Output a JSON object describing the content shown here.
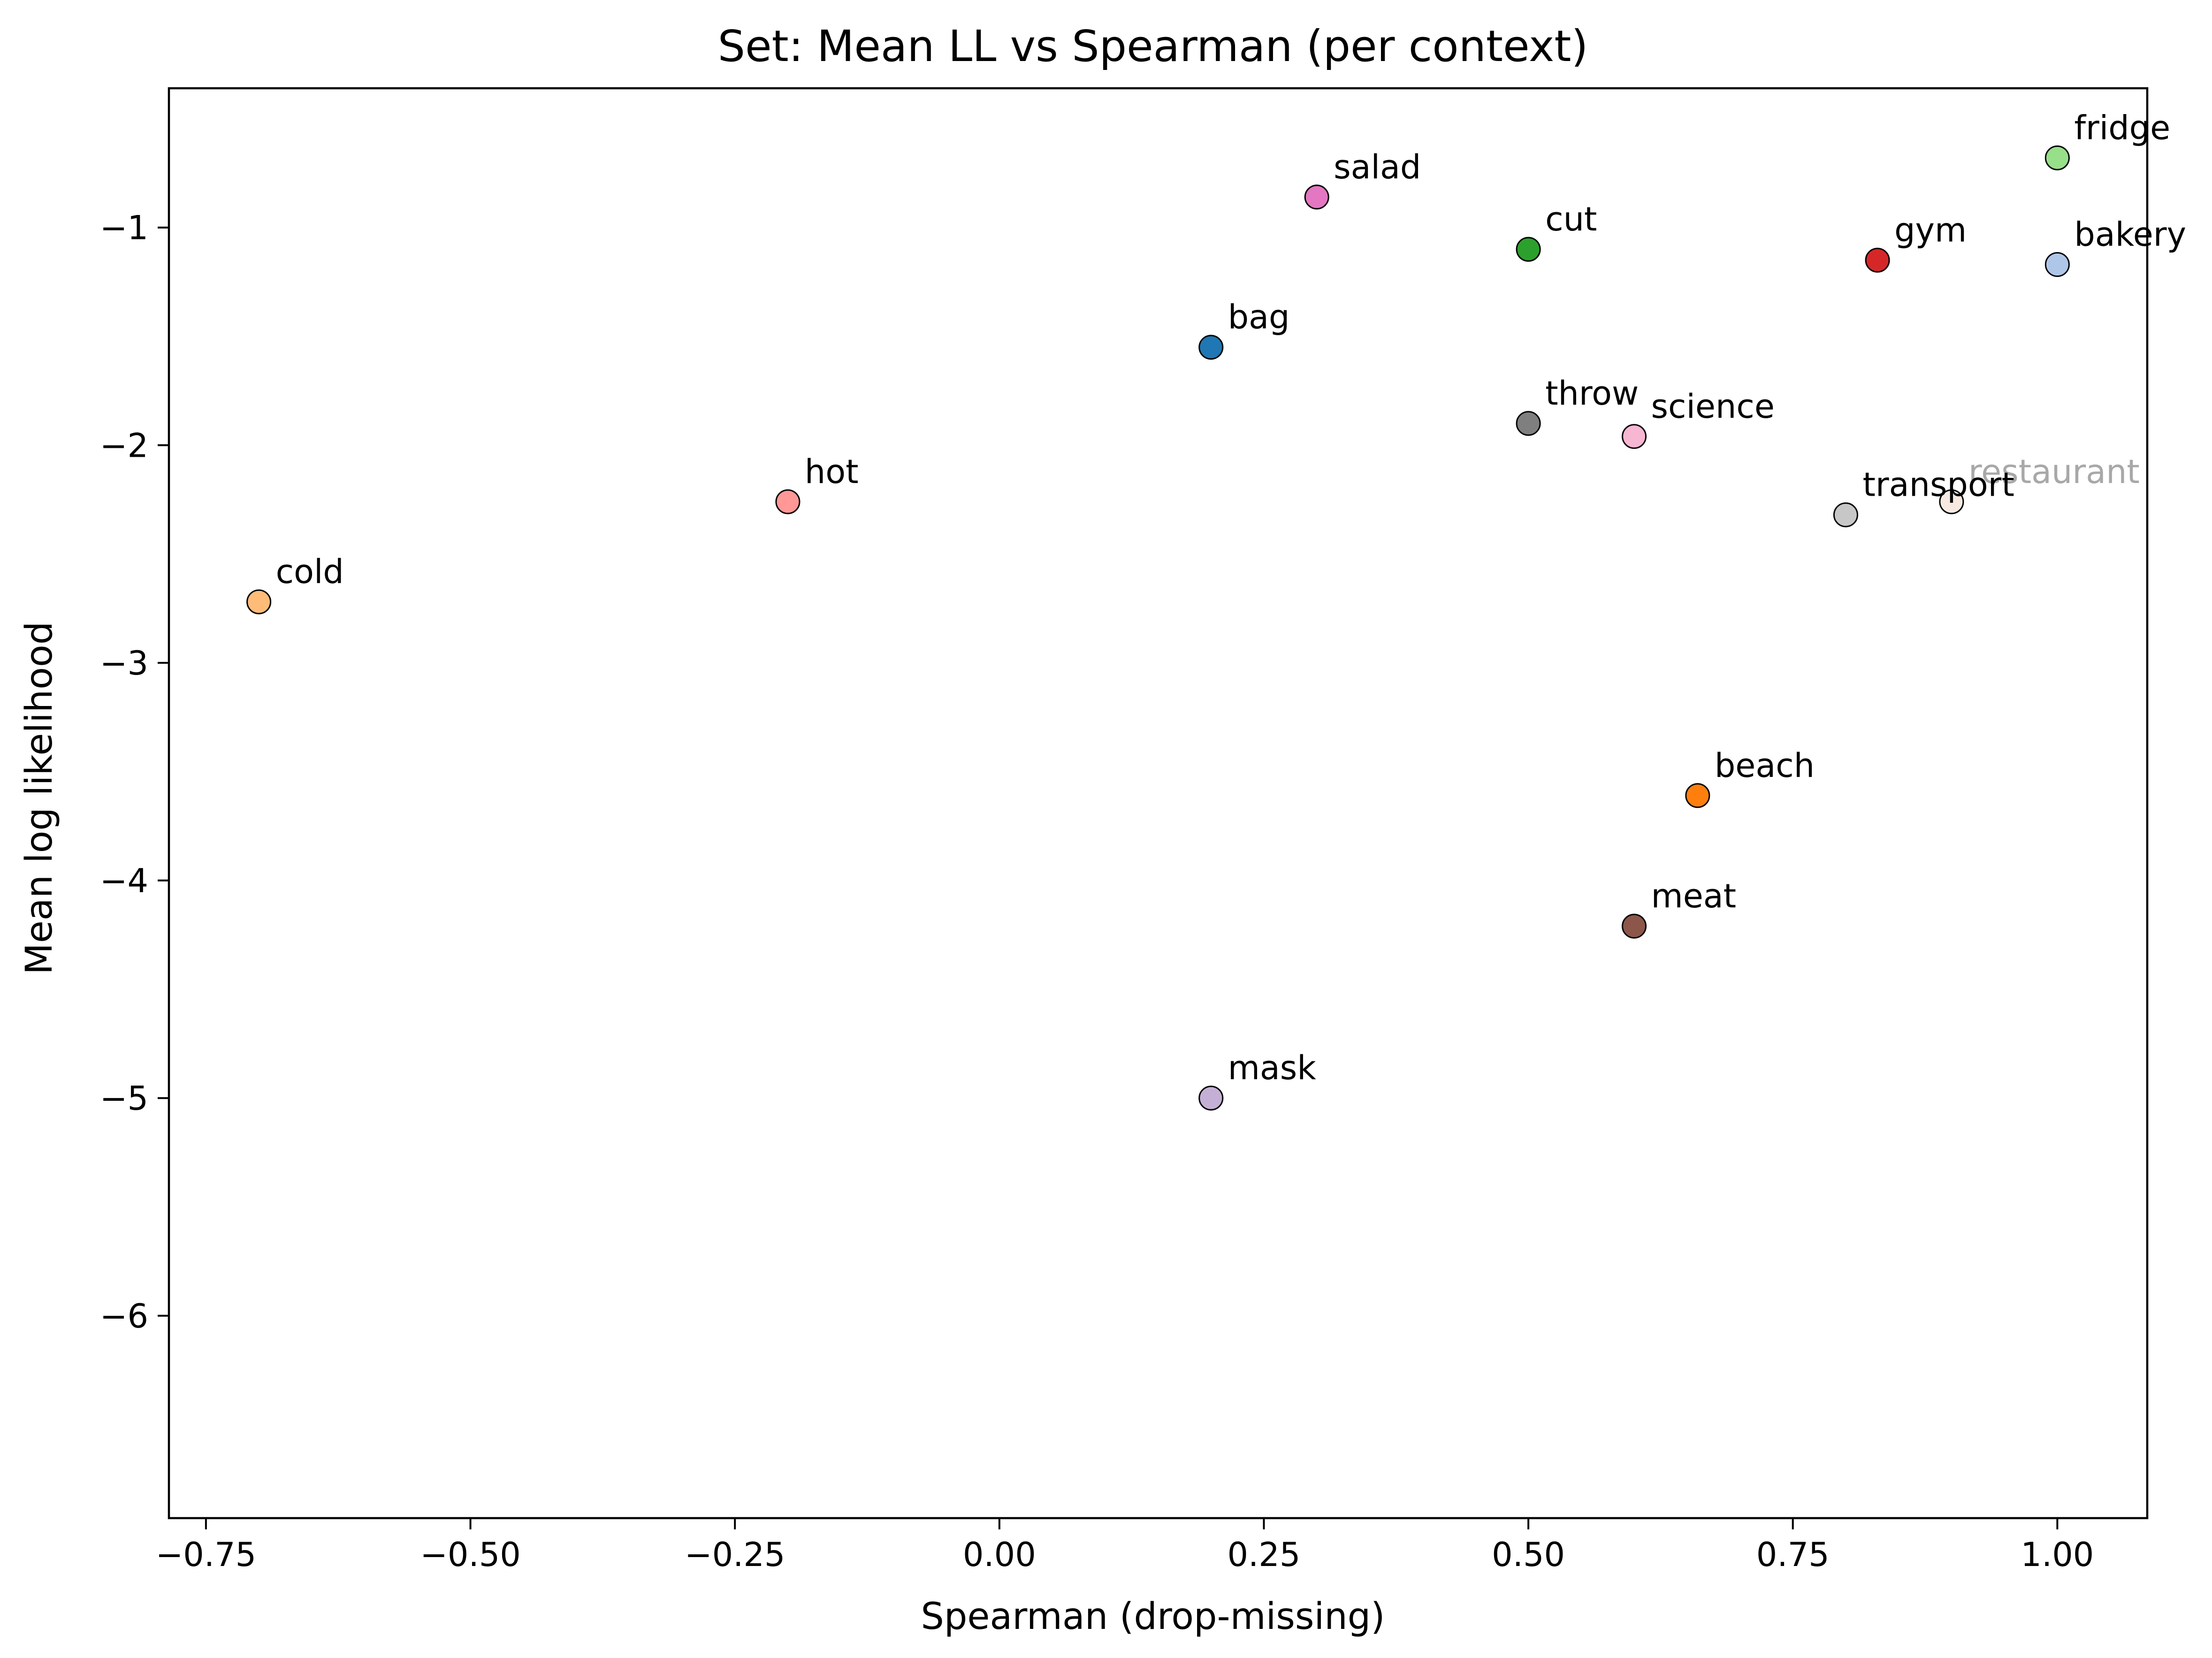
{
  "chart_data": {
    "type": "scatter",
    "title": "Set: Mean LL vs Spearman (per context)",
    "xlabel": "Spearman (drop-missing)",
    "ylabel": "Mean log likelihood",
    "xlim": [
      -0.785,
      1.085
    ],
    "ylim": [
      -6.93,
      -0.36
    ],
    "x_ticks": [
      {
        "value": -0.75,
        "label": "−0.75"
      },
      {
        "value": -0.5,
        "label": "−0.50"
      },
      {
        "value": -0.25,
        "label": "−0.25"
      },
      {
        "value": 0.0,
        "label": "0.00"
      },
      {
        "value": 0.25,
        "label": "0.25"
      },
      {
        "value": 0.5,
        "label": "0.50"
      },
      {
        "value": 0.75,
        "label": "0.75"
      },
      {
        "value": 1.0,
        "label": "1.00"
      }
    ],
    "y_ticks": [
      {
        "value": -1,
        "label": "−1"
      },
      {
        "value": -2,
        "label": "−2"
      },
      {
        "value": -3,
        "label": "−3"
      },
      {
        "value": -4,
        "label": "−4"
      },
      {
        "value": -5,
        "label": "−5"
      },
      {
        "value": -6,
        "label": "−6"
      }
    ],
    "grid": false,
    "points": [
      {
        "label": "fridge",
        "x": 1.0,
        "y": -0.68,
        "color": "#98df8a",
        "label_color": "#000000"
      },
      {
        "label": "salad",
        "x": 0.3,
        "y": -0.86,
        "color": "#e377c2",
        "label_color": "#000000"
      },
      {
        "label": "cut",
        "x": 0.5,
        "y": -1.1,
        "color": "#2ca02c",
        "label_color": "#000000"
      },
      {
        "label": "gym",
        "x": 0.83,
        "y": -1.15,
        "color": "#d62728",
        "label_color": "#000000"
      },
      {
        "label": "bakery",
        "x": 1.0,
        "y": -1.17,
        "color": "#aec7e8",
        "label_color": "#000000"
      },
      {
        "label": "bag",
        "x": 0.2,
        "y": -1.55,
        "color": "#1f77b4",
        "label_color": "#000000"
      },
      {
        "label": "throw",
        "x": 0.5,
        "y": -1.9,
        "color": "#7f7f7f",
        "label_color": "#000000"
      },
      {
        "label": "science",
        "x": 0.6,
        "y": -1.96,
        "color": "#f7b6d2",
        "label_color": "#000000"
      },
      {
        "label": "restaurant",
        "x": 0.9,
        "y": -2.26,
        "color": "#f7e9e2",
        "label_color": "#a8a8a8"
      },
      {
        "label": "hot",
        "x": -0.2,
        "y": -2.26,
        "color": "#ff9896",
        "label_color": "#000000"
      },
      {
        "label": "transport",
        "x": 0.8,
        "y": -2.32,
        "color": "#c7c7c7",
        "label_color": "#000000"
      },
      {
        "label": "cold",
        "x": -0.7,
        "y": -2.72,
        "color": "#ffbb78",
        "label_color": "#000000"
      },
      {
        "label": "beach",
        "x": 0.66,
        "y": -3.61,
        "color": "#ff7f0e",
        "label_color": "#000000"
      },
      {
        "label": "meat",
        "x": 0.6,
        "y": -4.21,
        "color": "#8c564b",
        "label_color": "#000000"
      },
      {
        "label": "mask",
        "x": 0.2,
        "y": -5.0,
        "color": "#c5b0d5",
        "label_color": "#000000"
      }
    ]
  }
}
